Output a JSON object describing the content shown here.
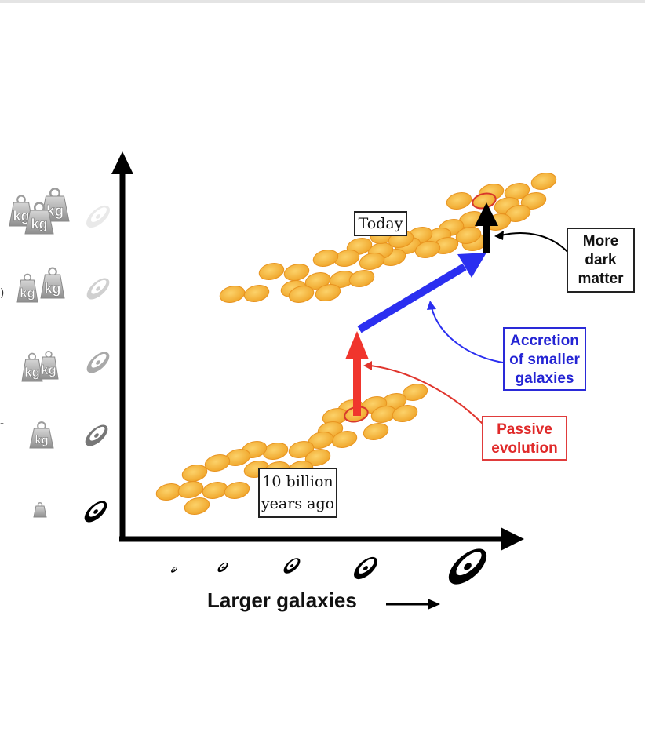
{
  "labels": {
    "today": "Today",
    "past_line1": "10 billion",
    "past_line2": "years ago",
    "x_axis": "Larger galaxies",
    "dark_matter": [
      "More",
      "dark",
      "matter"
    ],
    "accretion": [
      "Accretion",
      "of smaller",
      "galaxies"
    ],
    "passive": [
      "Passive",
      "evolution"
    ],
    "weight_label": "kg",
    "edge_fragment_a": ")",
    "edge_fragment_b": "-"
  },
  "colors": {
    "galaxy_fill": "#f5b43a",
    "galaxy_edge": "#e89420",
    "passive_arrow": "#f0352d",
    "accretion_arrow": "#2b2ff0",
    "dark_matter_arrow": "#000000",
    "highlight_ring": "#d8382c"
  },
  "icons": {
    "y_axis_icons": [
      "kg-weight-stack-icon",
      "galaxy-icon"
    ],
    "x_axis_icons": [
      "galaxy-icon"
    ],
    "x_axis_arrow": "right-arrow-icon"
  }
}
